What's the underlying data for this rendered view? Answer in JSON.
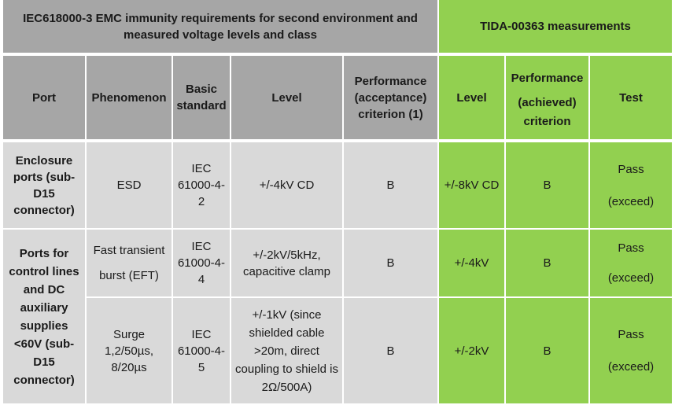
{
  "title_left": "IEC618000-3 EMC immunity requirements for second environment and measured voltage levels and class",
  "title_right": "TIDA-00363 measurements",
  "headers": {
    "port": "Port",
    "phenomenon": "Phenomenon",
    "basic_standard": "Basic standard",
    "level": "Level",
    "performance_acceptance": "Performance (acceptance) criterion (1)",
    "measured_level": "Level",
    "performance_achieved": [
      "Performance",
      "(achieved)",
      "criterion"
    ],
    "test": "Test"
  },
  "port_groups": [
    "Enclosure ports (sub-D15 connector)",
    "Ports for control lines and DC auxiliary supplies <60V (sub-D15 connector)"
  ],
  "rows": [
    {
      "phenomenon": "ESD",
      "basic_standard": "IEC 61000-4-2",
      "level": "+/-4kV CD",
      "performance_acceptance": "B",
      "measured_level": "+/-8kV CD",
      "performance_achieved": "B",
      "test": [
        "Pass",
        "(exceed)"
      ]
    },
    {
      "phenomenon": [
        "Fast transient",
        "burst (EFT)"
      ],
      "basic_standard": "IEC 61000-4-4",
      "level": "+/-2kV/5kHz, capacitive clamp",
      "performance_acceptance": "B",
      "measured_level": "+/-4kV",
      "performance_achieved": "B",
      "test": [
        "Pass",
        "(exceed)"
      ]
    },
    {
      "phenomenon": "Surge 1,2/50µs, 8/20µs",
      "basic_standard": "IEC 61000-4-5",
      "level": "+/-1kV (since shielded cable >20m, direct coupling to shield is 2Ω/500A)",
      "performance_acceptance": "B",
      "measured_level": "+/-2kV",
      "performance_achieved": "B",
      "test": [
        "Pass",
        "(exceed)"
      ]
    }
  ],
  "colors": {
    "header_gray": "#a6a6a6",
    "cell_gray": "#d9d9d9",
    "measurement_green": "#92d050"
  }
}
